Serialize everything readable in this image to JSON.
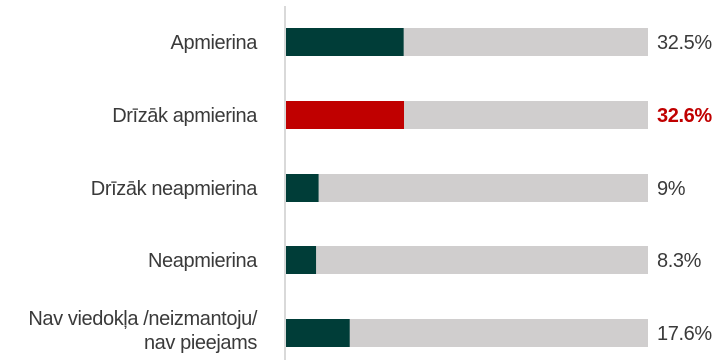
{
  "chart_data": {
    "type": "bar",
    "orientation": "horizontal",
    "categories": [
      [
        "Apmierina"
      ],
      [
        "Drīzāk apmierina"
      ],
      [
        "Drīzāk neapmierina"
      ],
      [
        "Neapmierina"
      ],
      [
        "Nav viedokļa /neizmantoju/",
        "nav pieejams"
      ]
    ],
    "values": [
      32.5,
      32.6,
      9,
      8.3,
      17.6
    ],
    "value_labels": [
      "32.5%",
      "32.6%",
      "9%",
      "8.3%",
      "17.6%"
    ],
    "highlight_index": 1,
    "xlim": [
      0,
      100
    ],
    "grid": false,
    "colors": {
      "bar": "#003d38",
      "highlight": "#c00000",
      "track": "#d0cece",
      "axis": "#d9d9d9",
      "text": "#3a3a3a"
    }
  }
}
